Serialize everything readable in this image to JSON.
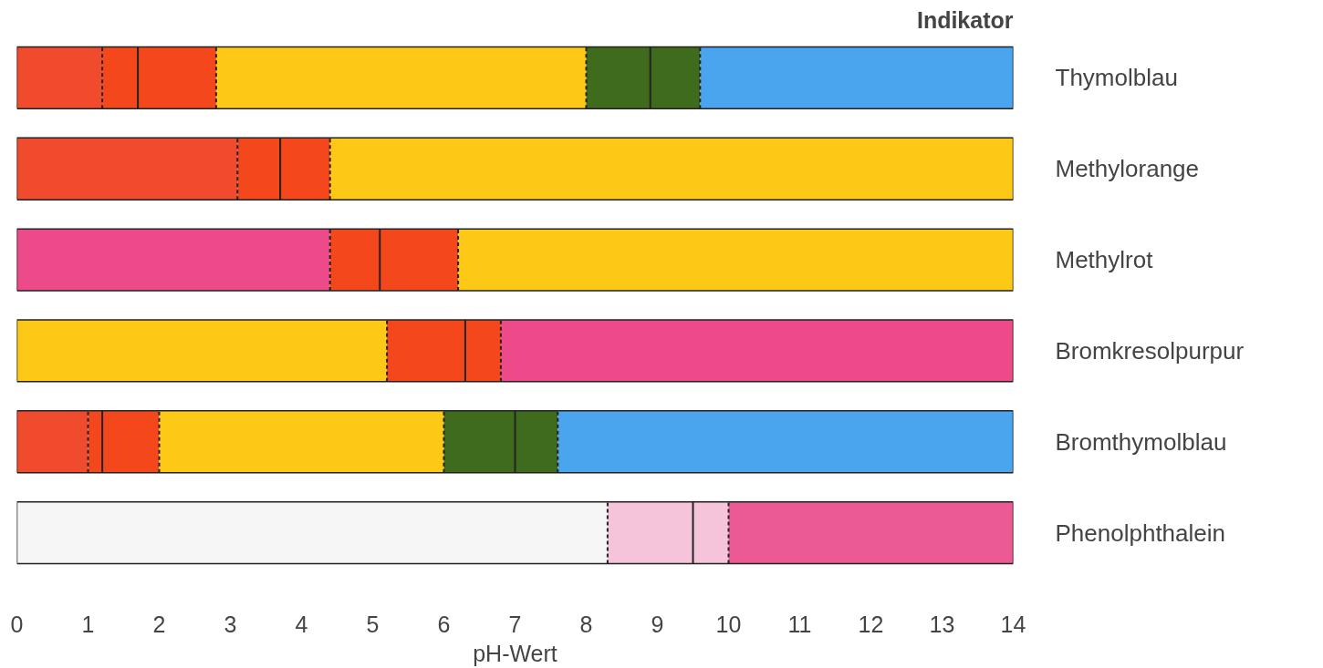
{
  "chart_data": {
    "type": "bar",
    "orientation": "horizontal",
    "stacked": true,
    "xlabel": "pH-Wert",
    "ylabel": "Indikator",
    "categories": [
      "Thymolblau",
      "Methylorange",
      "Methylrot",
      "Bromkresolpurpur",
      "Bromthymolblau",
      "Phenolphthalein"
    ],
    "xlim": [
      0,
      14
    ],
    "xticks": [
      0,
      1,
      2,
      3,
      4,
      5,
      6,
      7,
      8,
      9,
      10,
      11,
      12,
      13,
      14
    ],
    "grid": false,
    "series": [
      {
        "values": [
          1.2,
          3.1,
          4.4,
          5.2,
          1.0,
          8.3
        ],
        "colors": [
          "#f14b2e",
          "#f14b2e",
          "#ec4a88",
          "#fdc816",
          "#f14b2e",
          "#f6f6f6"
        ]
      },
      {
        "values": [
          0.5,
          0.6,
          0.7,
          1.1,
          0.2,
          1.2
        ],
        "colors": [
          "#f4481c",
          "#f4481c",
          "#f4481c",
          "#f4481c",
          "#f4481c",
          "#f6c4da"
        ],
        "line_style": "dashed"
      },
      {
        "values": [
          1.1,
          0.7,
          1.1,
          0.5,
          0.8,
          0.5
        ],
        "colors": [
          "#f4481c",
          "#f4481c",
          "#f4481c",
          "#f4481c",
          "#f4481c",
          "#f6c4da"
        ],
        "line_style": "solid"
      },
      {
        "values": [
          5.2,
          9.6,
          7.8,
          7.2,
          4.0,
          4.0
        ],
        "colors": [
          "#fdc816",
          "#fdc816",
          "#fdc816",
          "#ec4a88",
          "#fdc816",
          "#ec5a94"
        ],
        "line_style": "dashed"
      },
      {
        "values": [
          0.9,
          null,
          null,
          null,
          1.0,
          null
        ],
        "colors": [
          "#3f6b1c",
          null,
          null,
          null,
          "#3f6b1c",
          null
        ],
        "line_style": "dashed"
      },
      {
        "values": [
          0.7,
          null,
          null,
          null,
          0.6,
          null
        ],
        "colors": [
          "#3f6b1c",
          null,
          null,
          null,
          "#3f6b1c",
          null
        ],
        "line_style": "solid"
      },
      {
        "values": [
          4.4,
          null,
          null,
          null,
          6.4,
          null
        ],
        "colors": [
          "#4ba4ee",
          null,
          null,
          null,
          "#4ba4ee",
          null
        ],
        "line_style": "dashed"
      }
    ]
  }
}
